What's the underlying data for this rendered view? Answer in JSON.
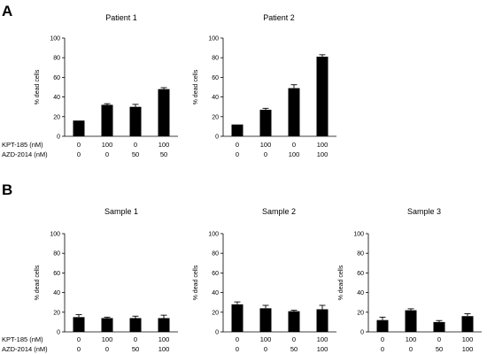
{
  "panels": [
    {
      "label": "A"
    },
    {
      "label": "B"
    }
  ],
  "row_labels": {
    "kpt": "KPT-185 (nM)",
    "azd": "AZD-2014 (nM)"
  },
  "chart_data": [
    {
      "type": "bar",
      "title": "Patient 1",
      "ylabel": "% dead cells",
      "ylim": [
        0,
        100
      ],
      "yticks": [
        0,
        20,
        40,
        60,
        80,
        100
      ],
      "kpt_labels": [
        "0",
        "100",
        "0",
        "100"
      ],
      "azd_labels": [
        "0",
        "0",
        "50",
        "50"
      ],
      "values": [
        16,
        32,
        30,
        48
      ],
      "errors": [
        0,
        1.2,
        2.5,
        1.5
      ],
      "bar_color": "#000000"
    },
    {
      "type": "bar",
      "title": "Patient 2",
      "ylabel": "% dead cells",
      "ylim": [
        0,
        100
      ],
      "yticks": [
        0,
        20,
        40,
        60,
        80,
        100
      ],
      "kpt_labels": [
        "0",
        "100",
        "0",
        "100"
      ],
      "azd_labels": [
        "0",
        "0",
        "100",
        "100"
      ],
      "values": [
        12,
        27,
        49,
        81
      ],
      "errors": [
        0,
        1.5,
        3.5,
        2
      ],
      "bar_color": "#000000"
    },
    {
      "type": "bar",
      "title": "Sample 1",
      "ylabel": "% dead cells",
      "ylim": [
        0,
        100
      ],
      "yticks": [
        0,
        20,
        40,
        60,
        80,
        100
      ],
      "kpt_labels": [
        "0",
        "100",
        "0",
        "100"
      ],
      "azd_labels": [
        "0",
        "0",
        "50",
        "100"
      ],
      "values": [
        15,
        14,
        14,
        14
      ],
      "errors": [
        2.5,
        1,
        2,
        3
      ],
      "bar_color": "#000000"
    },
    {
      "type": "bar",
      "title": "Sample 2",
      "ylabel": "% dead cells",
      "ylim": [
        0,
        100
      ],
      "yticks": [
        0,
        20,
        40,
        60,
        80,
        100
      ],
      "kpt_labels": [
        "0",
        "100",
        "0",
        "100"
      ],
      "azd_labels": [
        "0",
        "0",
        "50",
        "100"
      ],
      "values": [
        28,
        24,
        21,
        23
      ],
      "errors": [
        2.5,
        3,
        1,
        4
      ],
      "bar_color": "#000000"
    },
    {
      "type": "bar",
      "title": "Sample 3",
      "ylabel": "% dead cells",
      "ylim": [
        0,
        100
      ],
      "yticks": [
        0,
        20,
        40,
        60,
        80,
        100
      ],
      "kpt_labels": [
        "0",
        "100",
        "0",
        "100"
      ],
      "azd_labels": [
        "0",
        "0",
        "50",
        "100"
      ],
      "values": [
        12,
        22,
        10,
        16
      ],
      "errors": [
        3,
        1.5,
        1.5,
        2.5
      ],
      "bar_color": "#000000"
    }
  ]
}
